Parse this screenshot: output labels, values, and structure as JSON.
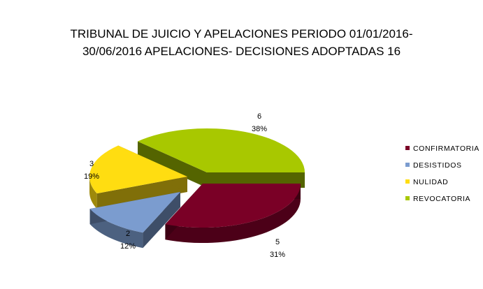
{
  "chart_data": {
    "type": "pie",
    "title_line1": "TRIBUNAL DE JUICIO Y APELACIONES PERIODO 01/01/2016-",
    "title_line2": "30/06/2016 APELACIONES- DECISIONES ADOPTADAS 16",
    "categories": [
      "CONFIRMATORIA",
      "DESISTIDOS",
      "NULIDAD",
      "REVOCATORIA"
    ],
    "values": [
      5,
      2,
      3,
      6
    ],
    "percent_labels": [
      "31%",
      "12%",
      "19%",
      "38%"
    ],
    "colors": [
      "#7a0026",
      "#7b9ccf",
      "#ffdd11",
      "#a8c800"
    ],
    "legend_position": "right"
  }
}
